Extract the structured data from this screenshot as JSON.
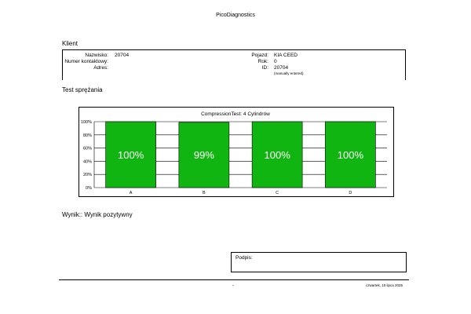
{
  "app_title": "PicoDiagnostics",
  "client": {
    "section_title": "Klient",
    "name_label": "Nazwisko:",
    "name_value": "20704",
    "contact_label": "Numer kontaktowy:",
    "contact_value": "",
    "address_label": "Adres:",
    "address_value": "",
    "vehicle_label": "Pojazd:",
    "vehicle_value": "KIA CEED",
    "year_label": "Rok:",
    "year_value": "0",
    "id_label": "ID:",
    "id_value": "20704",
    "id_note": "(manually entered)"
  },
  "test": {
    "section_title": "Test sprężania"
  },
  "chart_data": {
    "type": "bar",
    "title": "CompressionTest: 4 Cylindrów",
    "categories": [
      "A",
      "B",
      "C",
      "D"
    ],
    "values": [
      100,
      99,
      100,
      100
    ],
    "data_labels": [
      "100%",
      "99%",
      "100%",
      "100%"
    ],
    "y_ticks": [
      "0%",
      "20%",
      "40%",
      "60%",
      "80%",
      "100%"
    ],
    "ylim": [
      0,
      100
    ],
    "grid": true,
    "bar_color": "#11b511",
    "xlabel": "",
    "ylabel": ""
  },
  "result": {
    "text": "Wynik:: Wynik pozytywny"
  },
  "signature": {
    "label": "Podpis:"
  },
  "footer": {
    "dash": "-",
    "date": "czwartek, 10 lipca 2025"
  }
}
